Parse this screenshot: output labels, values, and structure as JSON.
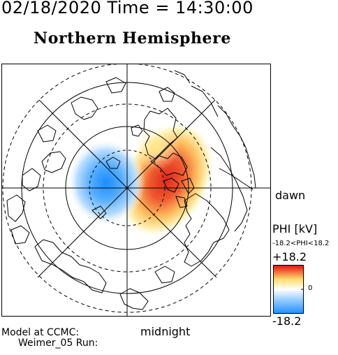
{
  "header": {
    "datetime": "02/18/2020 Time = 14:30:00",
    "hemisphere": "Northern Hemisphere"
  },
  "map": {
    "projection": "north-polar-stereographic",
    "dawn_label": "dawn",
    "midnight_label": "midnight",
    "potential_pattern": {
      "negative_cell": {
        "mlt": "dusk (left)",
        "color": "#1e90ff"
      },
      "positive_cell": {
        "mlt": "dawn (right)",
        "color": "#e83020"
      }
    }
  },
  "colorbar": {
    "title": "PHI [kV]",
    "range_text": "-18.2<PHI<18.2",
    "max_label": "+18.2",
    "mid_label": "0",
    "min_label": "-18.2",
    "max": 18.2,
    "min": -18.2,
    "colors": [
      "#2090ff",
      "#9fd0ff",
      "#ffffff",
      "#ffe070",
      "#e01010"
    ]
  },
  "footer": {
    "model_line1": "Model at CCMC:",
    "model_line2": "Weimer_05 Run:"
  }
}
